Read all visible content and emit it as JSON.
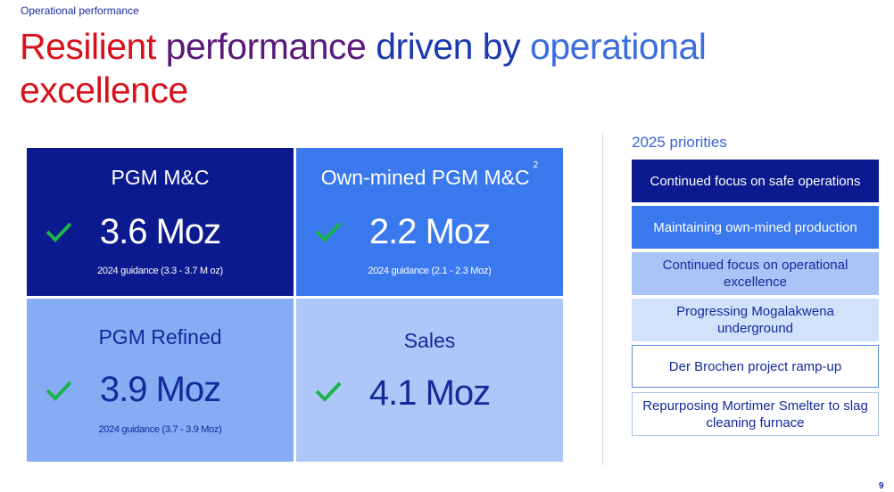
{
  "section_label": "Operational performance",
  "title": {
    "words": [
      "Resilient",
      "performance",
      "driven",
      "by",
      "operational",
      "excellence"
    ]
  },
  "tiles": [
    {
      "heading": "PGM M&C",
      "value": "3.6 Moz",
      "guidance": "2024 guidance (3.3 - 3.7 M oz)",
      "check": "check-icon"
    },
    {
      "heading": "Own-mined PGM M&C",
      "footnote": "2",
      "value": "2.2 Moz",
      "guidance": "2024 guidance (2.1 - 2.3 Moz)",
      "check": "check-icon"
    },
    {
      "heading": "PGM Refined",
      "value": "3.9 Moz",
      "guidance": "2024 guidance (3.7 - 3.9 Moz)",
      "check": "check-icon"
    },
    {
      "heading": "Sales",
      "value": "4.1 Moz",
      "check": "check-icon"
    }
  ],
  "priorities": {
    "heading": "2025 priorities",
    "items": [
      "Continued focus on safe operations",
      "Maintaining own-mined production",
      "Continued focus on operational excellence",
      "Progressing Mogalakwena underground",
      "Der Brochen project ramp-up",
      "Repurposing Mortimer Smelter to slag cleaning furnace"
    ]
  },
  "page_number": "9",
  "colors": {
    "check": "#1db34a",
    "dark_blue": "#0b1a8e",
    "mid_blue": "#3a78ee",
    "light_blue": "#86acf4",
    "pale_blue": "#adc8f8",
    "title_red": "#d6121c"
  }
}
